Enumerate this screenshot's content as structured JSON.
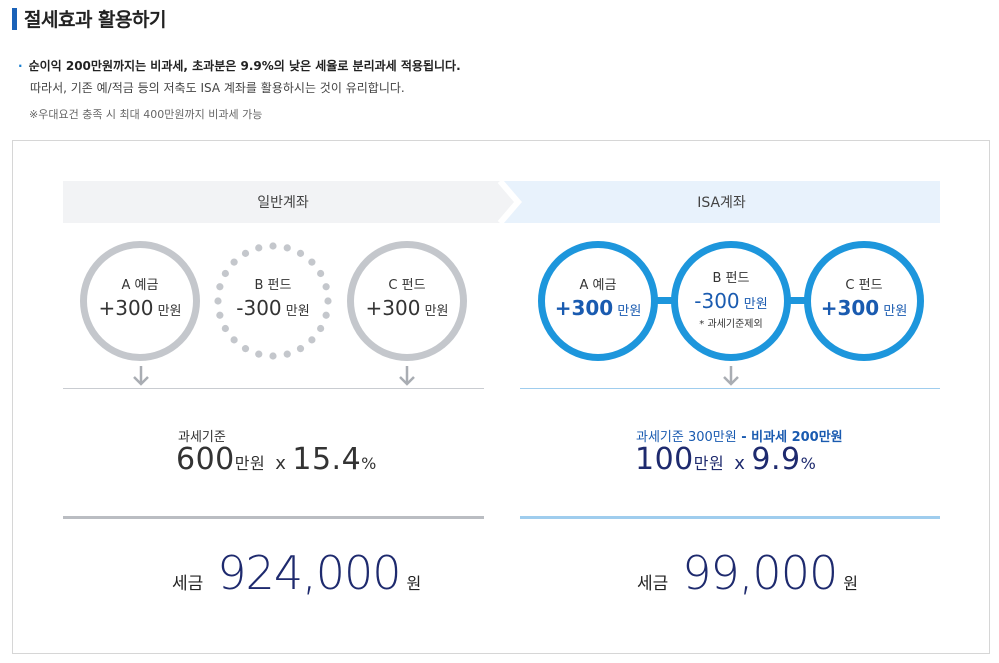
{
  "title": "절세효과 활용하기",
  "desc": {
    "line1": "순이익 200만원까지는 비과세, 초과분은 9.9%의 낮은 세율로 분리과세 적용됩니다.",
    "line2": "따라서, 기존 예/적금 등의 저축도 ISA 계좌를 활용하시는 것이 유리합니다.",
    "note": "※우대요건 충족 시 최대 400만원까지 비과세 가능"
  },
  "general": {
    "header": "일반계좌",
    "items": [
      {
        "name": "A 예금",
        "value": "+300",
        "unit": "만원"
      },
      {
        "name": "B 펀드",
        "value": "-300",
        "unit": "만원"
      },
      {
        "name": "C 펀드",
        "value": "+300",
        "unit": "만원"
      }
    ],
    "basis_label": "과세기준",
    "basis_value": "600",
    "basis_unit": "만원",
    "multiply": "x",
    "rate": "15.4",
    "rate_unit": "%",
    "tax_label": "세금",
    "tax_value": "924,000",
    "tax_unit": "원"
  },
  "isa": {
    "header": "ISA계좌",
    "items": [
      {
        "name": "A 예금",
        "value": "+300",
        "unit": "만원"
      },
      {
        "name": "B 펀드",
        "value": "-300",
        "unit": "만원",
        "sub": "* 과세기준제외"
      },
      {
        "name": "C 펀드",
        "value": "+300",
        "unit": "만원"
      }
    ],
    "basis_label_a": "과세기준 300만원",
    "basis_label_dash": " - ",
    "basis_label_b": "비과세 200만원",
    "basis_value": "100",
    "basis_unit": "만원",
    "multiply": "x",
    "rate": "9.9",
    "rate_unit": "%",
    "tax_label": "세금",
    "tax_value": "99,000",
    "tax_unit": "원"
  },
  "colors": {
    "accent": "#1d96dc",
    "navy": "#1e2a6e",
    "grey_ring": "#c4c7cc"
  }
}
